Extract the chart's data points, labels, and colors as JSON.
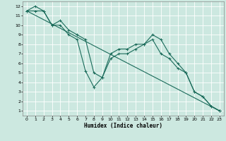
{
  "xlabel": "Humidex (Indice chaleur)",
  "bg_color": "#cce8e0",
  "grid_color": "#ffffff",
  "line_color": "#1a6b5a",
  "xlim": [
    -0.5,
    23.5
  ],
  "ylim": [
    0.5,
    12.5
  ],
  "xticks": [
    0,
    1,
    2,
    3,
    4,
    5,
    6,
    7,
    8,
    9,
    10,
    11,
    12,
    13,
    14,
    15,
    16,
    17,
    18,
    19,
    20,
    21,
    22,
    23
  ],
  "yticks": [
    1,
    2,
    3,
    4,
    5,
    6,
    7,
    8,
    9,
    10,
    11,
    12
  ],
  "line1_x": [
    0,
    1,
    2,
    3,
    4,
    5,
    6,
    7,
    8,
    9,
    10,
    11,
    12,
    13,
    14,
    15,
    16,
    17,
    18,
    19,
    20,
    21,
    22,
    23
  ],
  "line1_y": [
    11.5,
    12.0,
    11.5,
    10.0,
    10.5,
    9.5,
    9.0,
    8.5,
    5.0,
    4.5,
    7.0,
    7.5,
    7.5,
    8.0,
    8.0,
    9.0,
    8.5,
    7.0,
    6.0,
    5.0,
    3.0,
    2.5,
    1.5,
    1.0
  ],
  "line2_x": [
    0,
    1,
    2,
    3,
    4,
    5,
    6,
    7,
    8,
    9,
    10,
    11,
    12,
    13,
    14,
    15,
    16,
    17,
    18,
    19,
    20,
    21,
    22,
    23
  ],
  "line2_y": [
    11.5,
    11.5,
    11.5,
    10.0,
    10.0,
    9.0,
    8.5,
    5.2,
    3.5,
    4.5,
    6.5,
    7.0,
    7.0,
    7.5,
    8.0,
    8.5,
    7.0,
    6.5,
    5.5,
    5.0,
    3.0,
    2.5,
    1.5,
    1.0
  ],
  "line3_x": [
    0,
    23
  ],
  "line3_y": [
    11.5,
    1.0
  ]
}
